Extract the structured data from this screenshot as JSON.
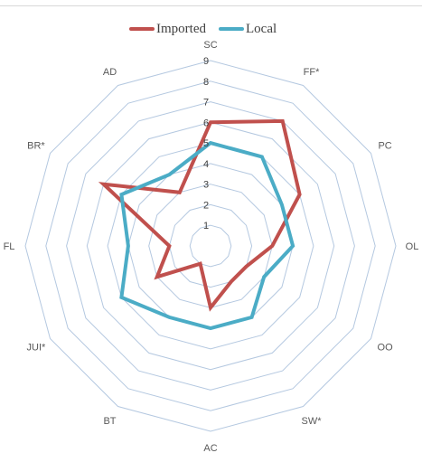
{
  "chart_data": {
    "type": "radar",
    "categories": [
      "SC",
      "FF*",
      "PC",
      "OL",
      "OO",
      "SW*",
      "AC",
      "BT",
      "JUI*",
      "FL",
      "BR*",
      "AD"
    ],
    "series": [
      {
        "name": "Imported",
        "color": "#c0504d",
        "values": [
          6,
          7,
          5,
          3,
          2,
          2,
          3,
          1,
          3,
          2,
          6,
          3
        ]
      },
      {
        "name": "Local",
        "color": "#4bacc6",
        "values": [
          5,
          5,
          4,
          4,
          3,
          4,
          4,
          4,
          5,
          4,
          5,
          4
        ]
      }
    ],
    "r_ticks": [
      "1",
      "2",
      "3",
      "4",
      "5",
      "6",
      "7",
      "8",
      "9"
    ],
    "rlim": [
      0,
      9
    ],
    "grid": true,
    "grid_color": "#b4c8e0",
    "legend_position": "top"
  }
}
